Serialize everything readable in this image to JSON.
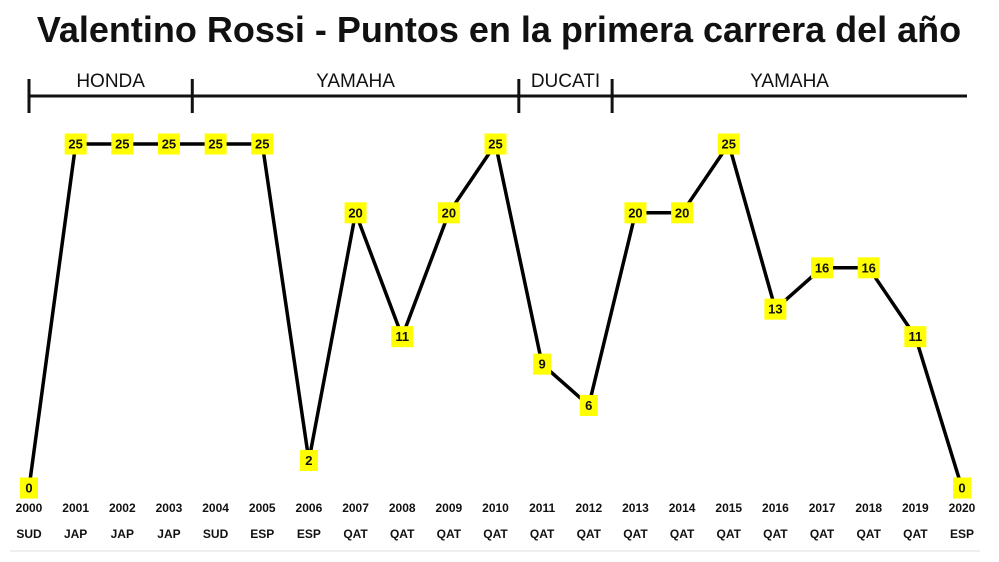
{
  "chart_data": {
    "type": "line",
    "title": "Valentino Rossi - Puntos en la primera carrera del año",
    "x": [
      "2000",
      "2001",
      "2002",
      "2003",
      "2004",
      "2005",
      "2006",
      "2007",
      "2008",
      "2009",
      "2010",
      "2011",
      "2012",
      "2013",
      "2014",
      "2015",
      "2016",
      "2017",
      "2018",
      "2019",
      "2020"
    ],
    "races": [
      "SUD",
      "JAP",
      "JAP",
      "JAP",
      "SUD",
      "ESP",
      "ESP",
      "QAT",
      "QAT",
      "QAT",
      "QAT",
      "QAT",
      "QAT",
      "QAT",
      "QAT",
      "QAT",
      "QAT",
      "QAT",
      "QAT",
      "QAT",
      "ESP"
    ],
    "values": [
      0,
      25,
      25,
      25,
      25,
      25,
      2,
      20,
      11,
      20,
      25,
      9,
      6,
      20,
      20,
      25,
      13,
      16,
      16,
      11,
      0
    ],
    "ylim": [
      0,
      25
    ],
    "teams": [
      {
        "name": "HONDA",
        "from": "2000",
        "to": "2003"
      },
      {
        "name": "YAMAHA",
        "from": "2004",
        "to": "2010"
      },
      {
        "name": "DUCATI",
        "from": "2011",
        "to": "2012"
      },
      {
        "name": "YAMAHA",
        "from": "2013",
        "to": "2020"
      }
    ],
    "label_color": "#ffff00",
    "line_color": "#000000",
    "grid": false,
    "legend": "none"
  }
}
